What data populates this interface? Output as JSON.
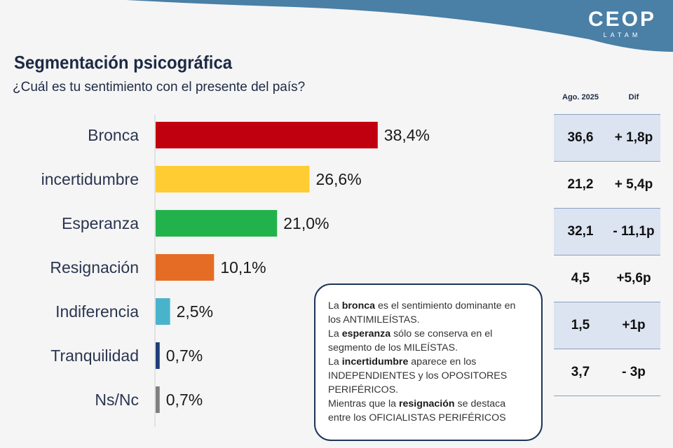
{
  "brand": {
    "name": "CEOP",
    "sub": "LATAM"
  },
  "title": "Segmentación psicográfica",
  "subtitle": "¿Cuál es tu sentimiento con el presente del país?",
  "chart_data": {
    "type": "bar",
    "orientation": "horizontal",
    "title": "¿Cuál es tu sentimiento con el presente del país?",
    "categories": [
      "Bronca",
      "incertidumbre",
      "Esperanza",
      "Resignación",
      "Indiferencia",
      "Tranquilidad",
      "Ns/Nc"
    ],
    "values": [
      38.4,
      26.6,
      21.0,
      10.1,
      2.5,
      0.7,
      0.7
    ],
    "value_labels": [
      "38,4%",
      "26,6%",
      "21,0%",
      "10,1%",
      "2,5%",
      "0,7%",
      "0,7%"
    ],
    "colors": [
      "#c0000e",
      "#ffcc33",
      "#22b24c",
      "#e46c24",
      "#4ab3cc",
      "#1f3d7a",
      "#7f7f7f"
    ],
    "unit": "%",
    "xlim": [
      0,
      40
    ],
    "xlabel": "",
    "ylabel": ""
  },
  "comparison": {
    "headers": [
      "Ago. 2025",
      "Dif"
    ],
    "rows": [
      {
        "prev": "36,6",
        "diff": "+ 1,8p"
      },
      {
        "prev": "21,2",
        "diff": "+ 5,4p"
      },
      {
        "prev": "32,1",
        "diff": "- 11,1p"
      },
      {
        "prev": "4,5",
        "diff": "+5,6p"
      },
      {
        "prev": "1,5",
        "diff": "+1p"
      },
      {
        "prev": "3,7",
        "diff": "- 3p"
      }
    ]
  },
  "note": {
    "s1": {
      "a": "La ",
      "b": "bronca",
      "c": " es el sentimiento dominante en los ANTIMILEÍSTAS."
    },
    "s2": {
      "a": "La ",
      "b": "esperanza",
      "c": " sólo se conserva en el segmento de los MILEÍSTAS."
    },
    "s3": {
      "a": "La ",
      "b": "incertidumbre",
      "c": " aparece en los INDEPENDIENTES y los OPOSITORES PERIFÉRICOS."
    },
    "s4": {
      "a": "Mientras que la ",
      "b": "resignación",
      "c": " se destaca entre los OFICIALISTAS PERIFÉRICOS"
    }
  }
}
